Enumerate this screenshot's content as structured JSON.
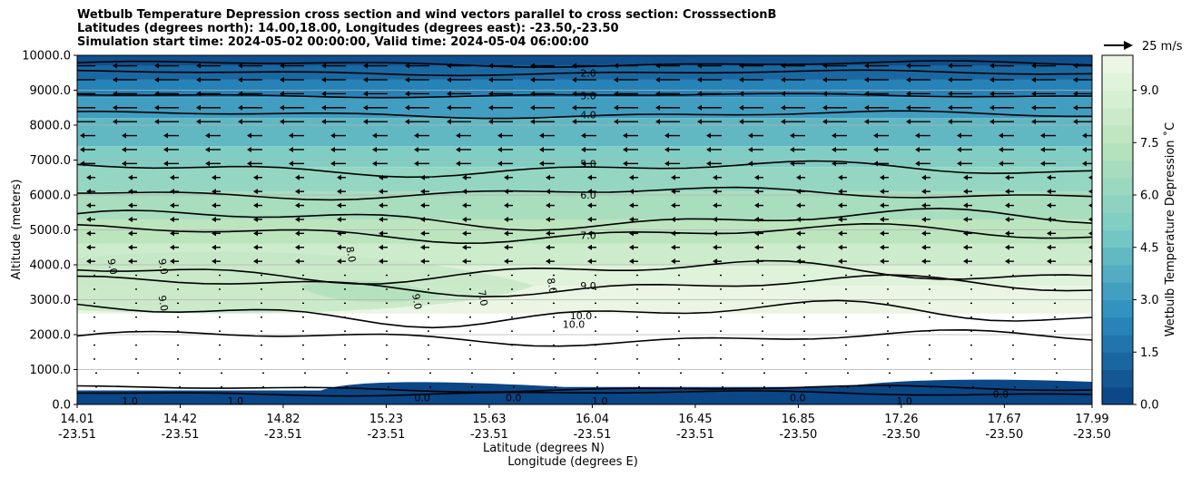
{
  "chart_data": {
    "type": "contour",
    "title": [
      "Wetbulb Temperature Depression cross section and wind vectors parallel to cross section: CrosssectionB",
      "Latitudes (degrees north): 14.00,18.00, Longitudes (degrees east): -23.50,-23.50",
      "Simulation start time: 2024-05-02 00:00:00, Valid time: 2024-05-04 06:00:00"
    ],
    "ylabel": "Altitude (meters)",
    "xlabel": "Latitude (degrees N)",
    "xlabel2": "Longitude (degrees E)",
    "ylim": [
      0,
      10000
    ],
    "y_ticks": [
      "0.0",
      "1000.0",
      "2000.0",
      "3000.0",
      "4000.0",
      "5000.0",
      "6000.0",
      "7000.0",
      "8000.0",
      "9000.0",
      "10000.0"
    ],
    "x_ticks": [
      {
        "lat": "14.01",
        "lon": "-23.51"
      },
      {
        "lat": "14.42",
        "lon": "-23.51"
      },
      {
        "lat": "14.82",
        "lon": "-23.51"
      },
      {
        "lat": "15.23",
        "lon": "-23.51"
      },
      {
        "lat": "15.63",
        "lon": "-23.51"
      },
      {
        "lat": "16.04",
        "lon": "-23.51"
      },
      {
        "lat": "16.45",
        "lon": "-23.51"
      },
      {
        "lat": "16.85",
        "lon": "-23.50"
      },
      {
        "lat": "17.26",
        "lon": "-23.50"
      },
      {
        "lat": "17.67",
        "lon": "-23.50"
      },
      {
        "lat": "17.99",
        "lon": "-23.50"
      }
    ],
    "grid": true,
    "colorbar": {
      "label": "Wetbulb Temperature Depression ˚C",
      "min": 0.0,
      "max": 10.0,
      "ticks": [
        "0.0",
        "1.5",
        "3.0",
        "4.5",
        "6.0",
        "7.5",
        "9.0"
      ],
      "tick_values": [
        0.0,
        1.5,
        3.0,
        4.5,
        6.0,
        7.5,
        9.0
      ]
    },
    "quiver_key": {
      "label": "25 m/s",
      "value": 25
    },
    "contour_labels_right": [
      {
        "text": "2.0",
        "altitude": 9500
      },
      {
        "text": "3.0",
        "altitude": 8850
      },
      {
        "text": "4.0",
        "altitude": 8300
      },
      {
        "text": "5.0",
        "altitude": 6900
      },
      {
        "text": "6.0",
        "altitude": 6000
      },
      {
        "text": "7.0",
        "altitude": 4850
      },
      {
        "text": "9.0",
        "altitude": 3400
      },
      {
        "text": "10.0",
        "altitude": 2550
      },
      {
        "text": "10.0",
        "altitude": 2300
      }
    ],
    "contour_labels_inner": [
      {
        "text": "9.0",
        "x": 0.035,
        "altitude": 3950
      },
      {
        "text": "9.0",
        "x": 0.085,
        "altitude": 3950
      },
      {
        "text": "9.0",
        "x": 0.085,
        "altitude": 2900
      },
      {
        "text": "8.0",
        "x": 0.27,
        "altitude": 4300
      },
      {
        "text": "9.0",
        "x": 0.335,
        "altitude": 2950
      },
      {
        "text": "7.0",
        "x": 0.4,
        "altitude": 3050
      },
      {
        "text": "8.0",
        "x": 0.468,
        "altitude": 3400
      },
      {
        "text": "0.0",
        "x": 0.34,
        "altitude": 200
      },
      {
        "text": "0.0",
        "x": 0.43,
        "altitude": 200
      },
      {
        "text": "0.0",
        "x": 0.71,
        "altitude": 200
      },
      {
        "text": "0.0",
        "x": 0.91,
        "altitude": 300
      },
      {
        "text": "1.0",
        "x": 0.052,
        "altitude": 100
      },
      {
        "text": "1.0",
        "x": 0.156,
        "altitude": 100
      },
      {
        "text": "1.0",
        "x": 0.515,
        "altitude": 100
      },
      {
        "text": "1.0",
        "x": 0.815,
        "altitude": 100
      }
    ]
  }
}
